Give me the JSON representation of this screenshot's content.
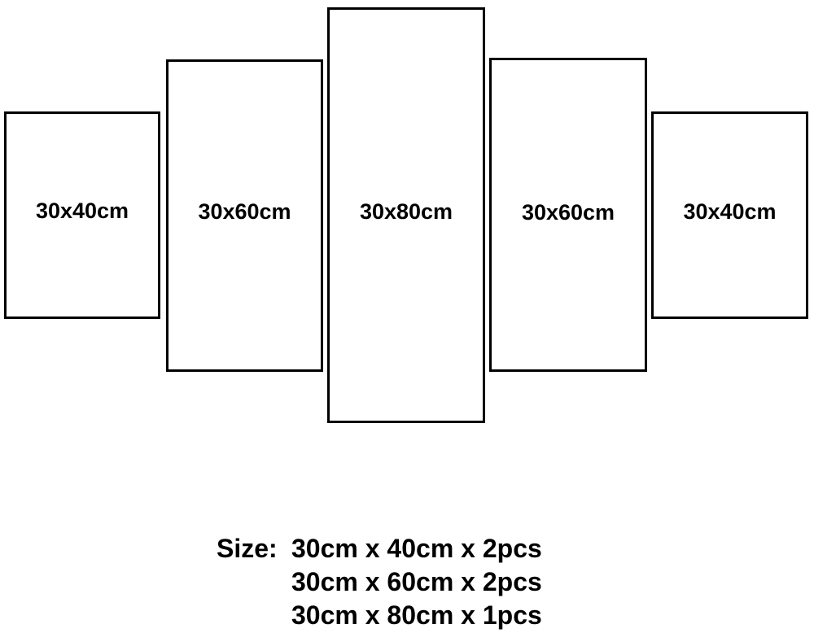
{
  "panels": [
    {
      "label": "30x40cm"
    },
    {
      "label": "30x60cm"
    },
    {
      "label": "30x80cm"
    },
    {
      "label": "30x60cm"
    },
    {
      "label": "30x40cm"
    }
  ],
  "size_info": {
    "prefix": "Size:",
    "lines": [
      "30cm x 40cm x 2pcs",
      "30cm x 60cm x 2pcs",
      "30cm x 80cm x 1pcs"
    ]
  },
  "colors": {
    "border": "#000000",
    "background": "#ffffff",
    "text": "#000000"
  }
}
